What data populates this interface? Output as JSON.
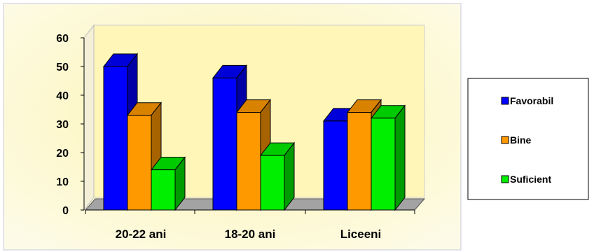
{
  "chart_data": {
    "type": "bar",
    "categories": [
      "20-22 ani",
      "18-20 ani",
      "Liceeni"
    ],
    "series": [
      {
        "name": "Favorabil",
        "values": [
          50,
          46,
          31
        ],
        "color": "#0000ff"
      },
      {
        "name": "Bine",
        "values": [
          33,
          34,
          34
        ],
        "color": "#ff9900"
      },
      {
        "name": "Suficient",
        "values": [
          14,
          19,
          32
        ],
        "color": "#00ee00"
      }
    ],
    "ylim": [
      0,
      60
    ],
    "yticks": [
      0,
      10,
      20,
      30,
      40,
      50,
      60
    ],
    "title": "",
    "xlabel": "",
    "ylabel": "",
    "grid": false,
    "legend_position": "right",
    "style": "3d-clustered-column",
    "background": "#fdfbd7",
    "plot_background": "#fffbc8",
    "floor_color": "#a0a0a0"
  }
}
